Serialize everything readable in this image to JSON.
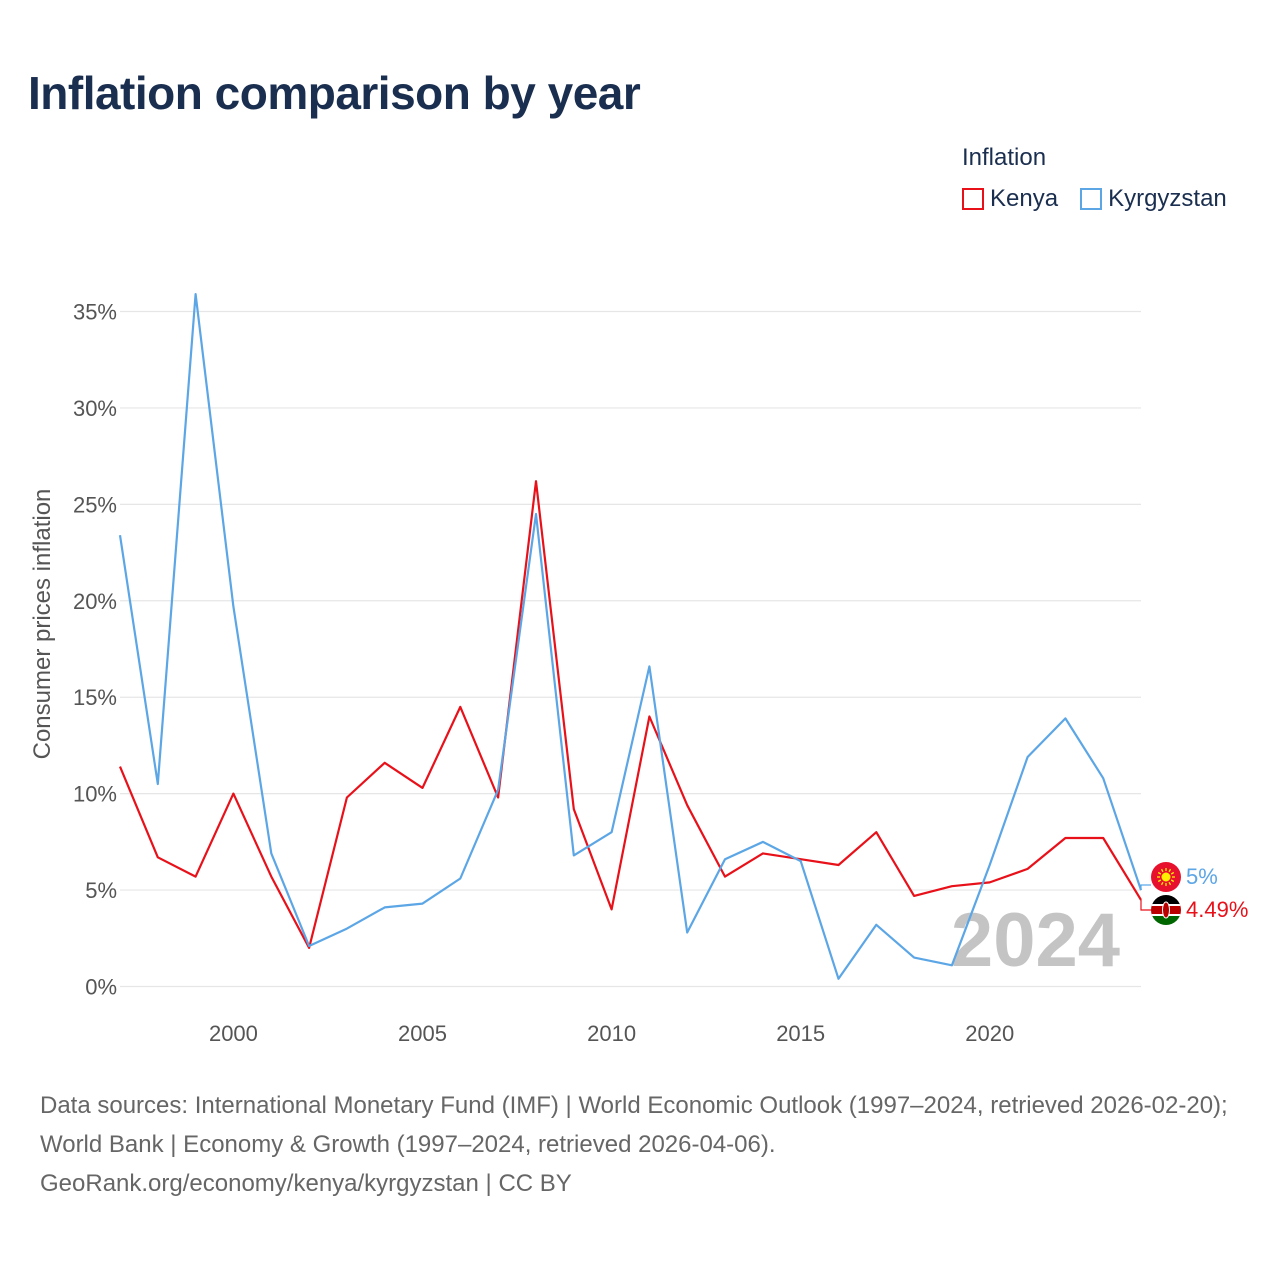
{
  "title": "Inflation comparison by year",
  "legend": {
    "title": "Inflation",
    "items": [
      {
        "label": "Kenya",
        "color": "#e8111a"
      },
      {
        "label": "Kyrgyzstan",
        "color": "#5ca6e6"
      }
    ]
  },
  "footer": {
    "sources": "Data sources: International Monetary Fund (IMF) | World Economic Outlook (1997–2024, retrieved 2026-02-20); World Bank | Economy & Growth (1997–2024, retrieved 2026-04-06).",
    "credit": "GeoRank.org/economy/kenya/kyrgyzstan | CC BY"
  },
  "chart_data": {
    "type": "line",
    "title": "Inflation comparison by year",
    "xlabel": "",
    "ylabel": "Consumer prices inflation",
    "x": [
      1997,
      1998,
      1999,
      2000,
      2001,
      2002,
      2003,
      2004,
      2005,
      2006,
      2007,
      2008,
      2009,
      2010,
      2011,
      2012,
      2013,
      2014,
      2015,
      2016,
      2017,
      2018,
      2019,
      2020,
      2021,
      2022,
      2023,
      2024
    ],
    "xlim": [
      1997,
      2024
    ],
    "ylim": [
      0,
      35
    ],
    "x_ticks": [
      2000,
      2005,
      2010,
      2015,
      2020
    ],
    "y_ticks": [
      0,
      5,
      10,
      15,
      20,
      25,
      30,
      35
    ],
    "y_tick_labels": [
      "0%",
      "5%",
      "10%",
      "15%",
      "20%",
      "25%",
      "30%",
      "35%"
    ],
    "grid": true,
    "legend_position": "top-right",
    "current_year": "2024",
    "series": [
      {
        "name": "Kenya",
        "color": "#e8111a",
        "values": [
          11.4,
          6.7,
          5.7,
          10.0,
          5.7,
          2.0,
          9.8,
          11.6,
          10.3,
          14.5,
          9.8,
          26.2,
          9.2,
          4.0,
          14.0,
          9.4,
          5.7,
          6.9,
          6.6,
          6.3,
          8.0,
          4.7,
          5.2,
          5.4,
          6.1,
          7.7,
          7.7,
          4.49
        ],
        "end_label": "4.49%"
      },
      {
        "name": "Kyrgyzstan",
        "color": "#5ca6e6",
        "values": [
          23.4,
          10.5,
          35.9,
          19.7,
          6.9,
          2.1,
          3.0,
          4.1,
          4.3,
          5.6,
          10.2,
          24.5,
          6.8,
          8.0,
          16.6,
          2.8,
          6.6,
          7.5,
          6.5,
          0.4,
          3.2,
          1.5,
          1.1,
          6.3,
          11.9,
          13.9,
          10.8,
          5.0
        ],
        "end_label": "5%"
      }
    ]
  }
}
